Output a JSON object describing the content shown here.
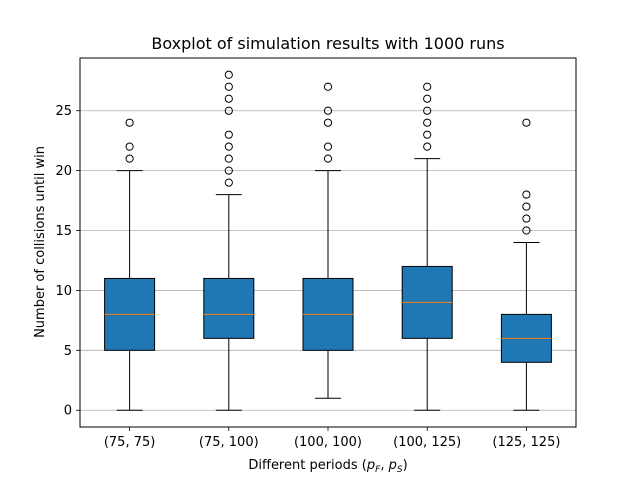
{
  "chart_data": {
    "type": "box",
    "title": "Boxplot of simulation results with 1000 runs",
    "xlabel_prefix": "Different periods (",
    "xlabel_p": "p",
    "xlabel_F": "F",
    "xlabel_S": "S",
    "xlabel_comma": ", ",
    "xlabel_suffix": ")",
    "ylabel": "Number of collisions until win",
    "ylim": [
      -1.4,
      29.4
    ],
    "yticks": [
      0,
      5,
      10,
      15,
      20,
      25
    ],
    "grid": "horizontal",
    "colors": {
      "box": "#1f77b4",
      "median": "#ff7f0e",
      "edge": "#000000",
      "grid": "#b0b0b0"
    },
    "categories": [
      "(75, 75)",
      "(75, 100)",
      "(100, 100)",
      "(100, 125)",
      "(125, 125)"
    ],
    "boxes": [
      {
        "q1": 5,
        "median": 8,
        "q3": 11,
        "whisker_low": 0,
        "whisker_high": 20,
        "outliers": [
          21,
          22,
          24
        ]
      },
      {
        "q1": 6,
        "median": 8,
        "q3": 11,
        "whisker_low": 0,
        "whisker_high": 18,
        "outliers": [
          19,
          20,
          21,
          22,
          23,
          25,
          26,
          27,
          28
        ]
      },
      {
        "q1": 5,
        "median": 8,
        "q3": 11,
        "whisker_low": 1,
        "whisker_high": 20,
        "outliers": [
          21,
          22,
          24,
          25,
          27
        ]
      },
      {
        "q1": 6,
        "median": 9,
        "q3": 12,
        "whisker_low": 0,
        "whisker_high": 21,
        "outliers": [
          22,
          23,
          24,
          25,
          26,
          27
        ]
      },
      {
        "q1": 4,
        "median": 6,
        "q3": 8,
        "whisker_low": 0,
        "whisker_high": 14,
        "outliers": [
          15,
          16,
          17,
          18,
          24
        ]
      }
    ]
  }
}
